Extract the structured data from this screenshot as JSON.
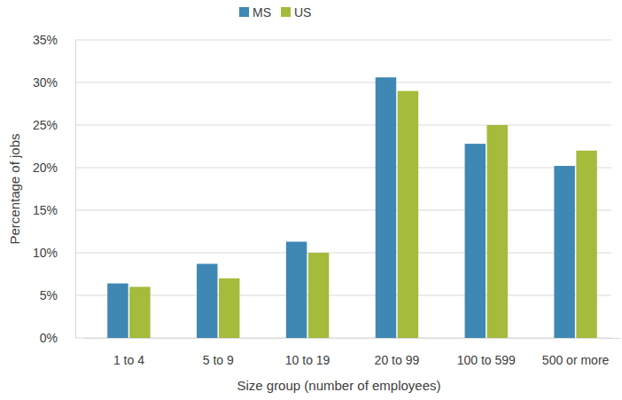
{
  "chart_data": {
    "type": "bar",
    "x_label": "Size group (number of employees)",
    "y_label": "Percentage of jobs",
    "categories": [
      "1 to 4",
      "5 to 9",
      "10 to 19",
      "20 to 99",
      "100 to 599",
      "500 or more"
    ],
    "series": [
      {
        "name": "MS",
        "color": "#3f87b4",
        "values": [
          6.4,
          8.7,
          11.3,
          30.6,
          22.8,
          20.2
        ]
      },
      {
        "name": "US",
        "color": "#a4bb3b",
        "values": [
          6.0,
          7.0,
          10.0,
          29.0,
          25.0,
          22.0
        ]
      }
    ],
    "ylim": [
      0,
      35
    ],
    "yticks": [
      {
        "value": 0,
        "label": "0%"
      },
      {
        "value": 5,
        "label": "5%"
      },
      {
        "value": 10,
        "label": "10%"
      },
      {
        "value": 15,
        "label": "15%"
      },
      {
        "value": 20,
        "label": "20%"
      },
      {
        "value": 25,
        "label": "25%"
      },
      {
        "value": 30,
        "label": "30%"
      },
      {
        "value": 35,
        "label": "35%"
      }
    ],
    "grid": true,
    "legend": "top"
  }
}
